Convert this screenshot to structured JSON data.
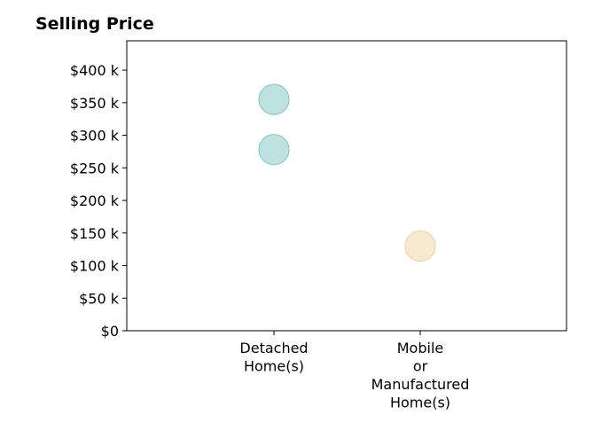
{
  "chart_data": {
    "type": "scatter",
    "title": "Selling Price",
    "xlabel": "",
    "ylabel": "",
    "categories": [
      [
        "Detached",
        "Home(s)"
      ],
      [
        "Mobile",
        "or",
        "Manufactured",
        "Home(s)"
      ]
    ],
    "ylim": [
      0,
      445
    ],
    "yticks": [
      0,
      50,
      100,
      150,
      200,
      250,
      300,
      350,
      400
    ],
    "ytick_labels": [
      "$0",
      "$50 k",
      "$100 k",
      "$150 k",
      "$200 k",
      "$250 k",
      "$300 k",
      "$350 k",
      "$400 k"
    ],
    "grid": false,
    "points": [
      {
        "category": 0,
        "y": 355,
        "color": "#a8d8d4"
      },
      {
        "category": 0,
        "y": 278,
        "color": "#a8d8d4"
      },
      {
        "category": 1,
        "y": 130,
        "color": "#f5e3bd"
      }
    ]
  }
}
